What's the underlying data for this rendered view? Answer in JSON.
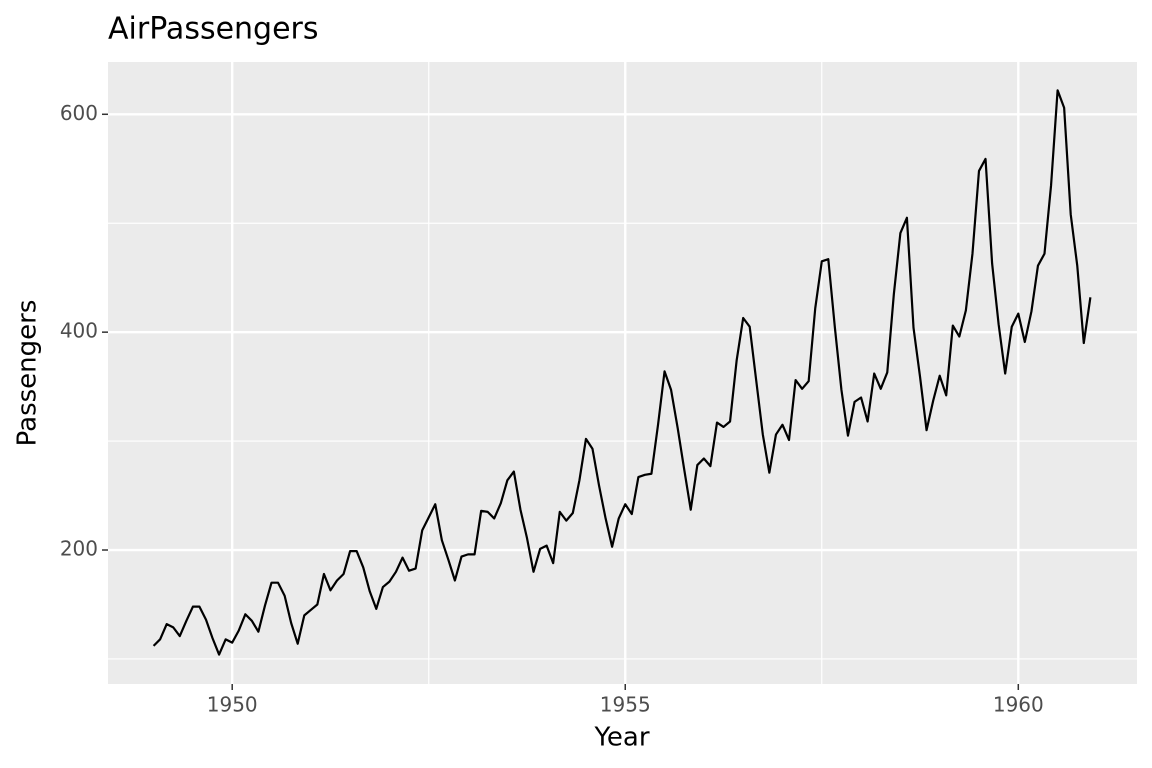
{
  "chart_data": {
    "type": "line",
    "title": "AirPassengers",
    "xlabel": "Year",
    "ylabel": "Passengers",
    "x": [
      1949,
      1949.083,
      1949.167,
      1949.25,
      1949.333,
      1949.417,
      1949.5,
      1949.583,
      1949.667,
      1949.75,
      1949.833,
      1949.917,
      1950,
      1950.083,
      1950.167,
      1950.25,
      1950.333,
      1950.417,
      1950.5,
      1950.583,
      1950.667,
      1950.75,
      1950.833,
      1950.917,
      1951,
      1951.083,
      1951.167,
      1951.25,
      1951.333,
      1951.417,
      1951.5,
      1951.583,
      1951.667,
      1951.75,
      1951.833,
      1951.917,
      1952,
      1952.083,
      1952.167,
      1952.25,
      1952.333,
      1952.417,
      1952.5,
      1952.583,
      1952.667,
      1952.75,
      1952.833,
      1952.917,
      1953,
      1953.083,
      1953.167,
      1953.25,
      1953.333,
      1953.417,
      1953.5,
      1953.583,
      1953.667,
      1953.75,
      1953.833,
      1953.917,
      1954,
      1954.083,
      1954.167,
      1954.25,
      1954.333,
      1954.417,
      1954.5,
      1954.583,
      1954.667,
      1954.75,
      1954.833,
      1954.917,
      1955,
      1955.083,
      1955.167,
      1955.25,
      1955.333,
      1955.417,
      1955.5,
      1955.583,
      1955.667,
      1955.75,
      1955.833,
      1955.917,
      1956,
      1956.083,
      1956.167,
      1956.25,
      1956.333,
      1956.417,
      1956.5,
      1956.583,
      1956.667,
      1956.75,
      1956.833,
      1956.917,
      1957,
      1957.083,
      1957.167,
      1957.25,
      1957.333,
      1957.417,
      1957.5,
      1957.583,
      1957.667,
      1957.75,
      1957.833,
      1957.917,
      1958,
      1958.083,
      1958.167,
      1958.25,
      1958.333,
      1958.417,
      1958.5,
      1958.583,
      1958.667,
      1958.75,
      1958.833,
      1958.917,
      1959,
      1959.083,
      1959.167,
      1959.25,
      1959.333,
      1959.417,
      1959.5,
      1959.583,
      1959.667,
      1959.75,
      1959.833,
      1959.917,
      1960,
      1960.083,
      1960.167,
      1960.25,
      1960.333,
      1960.417,
      1960.5,
      1960.583,
      1960.667,
      1960.75,
      1960.833,
      1960.917
    ],
    "values": [
      112,
      118,
      132,
      129,
      121,
      135,
      148,
      148,
      136,
      119,
      104,
      118,
      115,
      126,
      141,
      135,
      125,
      149,
      170,
      170,
      158,
      133,
      114,
      140,
      145,
      150,
      178,
      163,
      172,
      178,
      199,
      199,
      184,
      162,
      146,
      166,
      171,
      180,
      193,
      181,
      183,
      218,
      230,
      242,
      209,
      191,
      172,
      194,
      196,
      196,
      236,
      235,
      229,
      243,
      264,
      272,
      237,
      211,
      180,
      201,
      204,
      188,
      235,
      227,
      234,
      264,
      302,
      293,
      259,
      229,
      203,
      229,
      242,
      233,
      267,
      269,
      270,
      315,
      364,
      347,
      312,
      274,
      237,
      278,
      284,
      277,
      317,
      313,
      318,
      374,
      413,
      405,
      355,
      306,
      271,
      306,
      315,
      301,
      356,
      348,
      355,
      422,
      465,
      467,
      404,
      347,
      305,
      336,
      340,
      318,
      362,
      348,
      363,
      435,
      491,
      505,
      404,
      359,
      310,
      337,
      360,
      342,
      406,
      396,
      420,
      472,
      548,
      559,
      463,
      407,
      362,
      405,
      417,
      391,
      419,
      461,
      472,
      535,
      622,
      606,
      508,
      461,
      390,
      432
    ],
    "color": "#000000",
    "xlim": [
      1948.42,
      1961.51
    ],
    "xticks": [
      1950,
      1955,
      1960
    ],
    "xminor": [
      1952.5,
      1957.5
    ],
    "ylim": [
      77,
      648
    ],
    "yticks": [
      200,
      400,
      600
    ],
    "yminor": [
      100,
      300,
      500
    ],
    "grid": true
  }
}
